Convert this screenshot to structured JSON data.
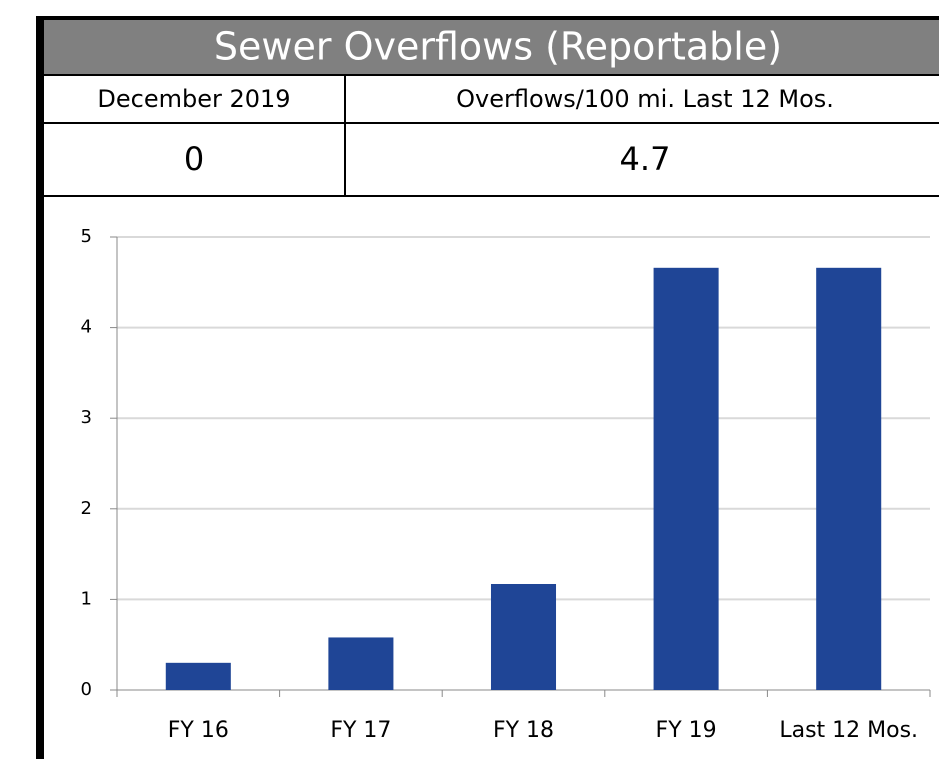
{
  "header": {
    "title": "Sewer Overflows (Reportable)"
  },
  "table": {
    "headers": [
      "December 2019",
      "Overflows/100 mi. Last 12 Mos."
    ],
    "values": [
      0,
      4.7
    ]
  },
  "chart_data": {
    "type": "bar",
    "categories": [
      "FY 16",
      "FY 17",
      "FY 18",
      "FY 19",
      "Last 12 Mos."
    ],
    "values": [
      0.3,
      0.58,
      1.17,
      4.66,
      4.66
    ],
    "color": "#1f4596",
    "ylim": [
      0,
      5
    ],
    "yticks": [
      0,
      1,
      2,
      3,
      4,
      5
    ],
    "grid": true
  }
}
